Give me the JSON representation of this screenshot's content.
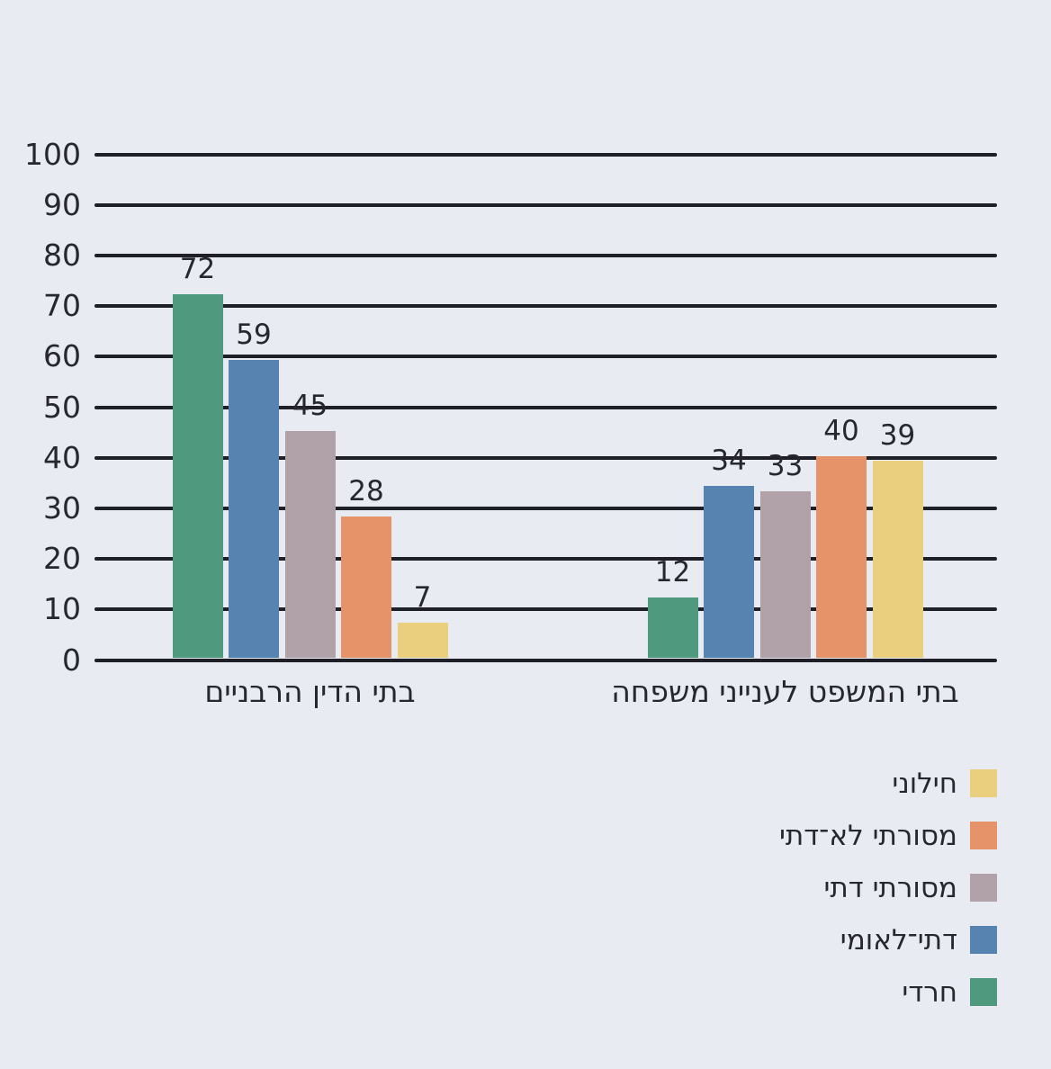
{
  "colors": {
    "background": "#e8ebf2",
    "gridline": "#1f1f27",
    "text": "#27272e"
  },
  "chart_data": {
    "type": "bar",
    "direction": "rtl",
    "title": "",
    "categories": [
      "בתי הדין הרבניים",
      "בתי המשפט לענייני משפחה"
    ],
    "series": [
      {
        "name": "חרדי",
        "color": "#4f997e",
        "values": [
          72,
          12
        ]
      },
      {
        "name": "דתי־לאומי",
        "color": "#5683af",
        "values": [
          59,
          34
        ]
      },
      {
        "name": "מסורתי דתי",
        "color": "#b1a2aa",
        "values": [
          45,
          33
        ]
      },
      {
        "name": "מסורתי לא־דתי",
        "color": "#e6936a",
        "values": [
          28,
          40
        ]
      },
      {
        "name": "חילוני",
        "color": "#eacf7f",
        "values": [
          7,
          39
        ]
      }
    ],
    "ylim": [
      0,
      100
    ],
    "yticks": [
      0,
      10,
      20,
      30,
      40,
      50,
      60,
      70,
      80,
      90,
      100
    ],
    "grid": true,
    "bar_value_labels": true,
    "legend_position": "bottom-right",
    "legend_order_top_to_bottom": [
      "חילוני",
      "מסורתי לא־דתי",
      "מסורתי דתי",
      "דתי־לאומי",
      "חרדי"
    ]
  }
}
